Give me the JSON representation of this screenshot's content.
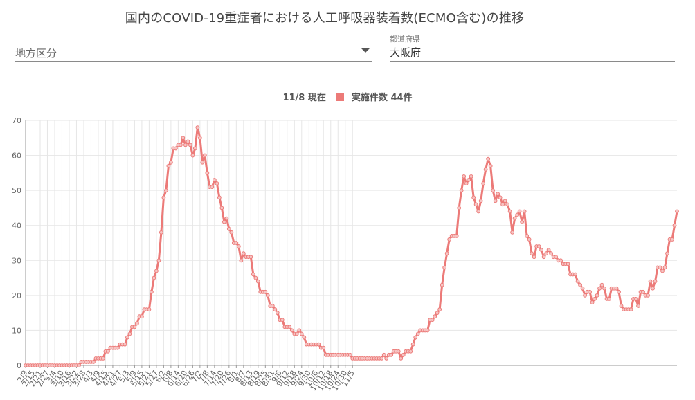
{
  "page": {
    "title": "国内のCOVID-19重症者における人工呼吸器装着数(ECMO含む)の推移"
  },
  "filters": {
    "region_placeholder": "地方区分",
    "prefecture_label": "都道府県",
    "prefecture_value": "大阪府"
  },
  "legend": {
    "date": "11/8 現在",
    "series_label": "実施件数 44件"
  },
  "colors": {
    "series": "#ec7a78",
    "grid": "#e6e6e6",
    "axis": "#666666"
  },
  "chart_data": {
    "type": "line",
    "x_start": "2/9",
    "x_interval_days": 2,
    "x_tick_labels": [
      "2/9",
      "2/15",
      "2/21",
      "2/27",
      "3/4",
      "3/10",
      "3/16",
      "3/22",
      "3/28",
      "4/3",
      "4/9",
      "4/15",
      "4/21",
      "4/27",
      "5/3",
      "5/9",
      "5/15",
      "5/21",
      "5/27",
      "6/2",
      "6/8",
      "6/14",
      "6/20",
      "6/26",
      "7/2",
      "7/8",
      "7/14",
      "7/20",
      "7/26",
      "8/1",
      "8/7",
      "8/13",
      "8/19",
      "8/25",
      "8/31",
      "9/6",
      "9/12",
      "9/18",
      "9/24",
      "9/30",
      "10/6",
      "10/12",
      "10/18",
      "10/24",
      "10/30",
      "11/5"
    ],
    "ylim": [
      0,
      70
    ],
    "y_ticks": [
      0,
      10,
      20,
      30,
      40,
      50,
      60,
      70
    ],
    "series": [
      {
        "name": "実施件数",
        "values": [
          0,
          0,
          0,
          0,
          0,
          0,
          0,
          0,
          0,
          0,
          0,
          0,
          0,
          0,
          0,
          0,
          0,
          0,
          0,
          0,
          0,
          0,
          0,
          1,
          1,
          1,
          1,
          1,
          1,
          2,
          2,
          2,
          2,
          4,
          4,
          5,
          5,
          5,
          5,
          6,
          6,
          6,
          8,
          9,
          11,
          11,
          12,
          14,
          14,
          16,
          16,
          16,
          21,
          25,
          27,
          30,
          38,
          48,
          50,
          57,
          58,
          62,
          62,
          63,
          63,
          65,
          63,
          64,
          63,
          60,
          62,
          68,
          65,
          58,
          60,
          55,
          51,
          51,
          53,
          52,
          48,
          45,
          41,
          42,
          39,
          38,
          35,
          35,
          34,
          30,
          32,
          31,
          31,
          31,
          26,
          25,
          24,
          21,
          21,
          21,
          20,
          17,
          17,
          16,
          15,
          13,
          13,
          11,
          11,
          11,
          10,
          9,
          9,
          10,
          9,
          8,
          6,
          6,
          6,
          6,
          6,
          6,
          5,
          5,
          3,
          3,
          3,
          3,
          3,
          3,
          3,
          3,
          3,
          3,
          3,
          2,
          2,
          2,
          2,
          2,
          2,
          2,
          2,
          2,
          2,
          2,
          2,
          2,
          3,
          2,
          3,
          3,
          4,
          4,
          4,
          2,
          3,
          4,
          4,
          4,
          6,
          8,
          9,
          10,
          10,
          10,
          10,
          13,
          13,
          14,
          15,
          16,
          23,
          28,
          32,
          36,
          37,
          37,
          37,
          45,
          50,
          54,
          52,
          53,
          54,
          48,
          46,
          44,
          47,
          52,
          56,
          59,
          57,
          50,
          47,
          49,
          48,
          46,
          47,
          46,
          44,
          38,
          42,
          43,
          44,
          41,
          44,
          37,
          36,
          32,
          31,
          34,
          34,
          33,
          31,
          32,
          33,
          32,
          31,
          31,
          30,
          30,
          29,
          29,
          29,
          26,
          26,
          26,
          24,
          23,
          22,
          20,
          21,
          21,
          18,
          19,
          20,
          22,
          23,
          22,
          19,
          19,
          22,
          22,
          22,
          21,
          17,
          16,
          16,
          16,
          16,
          19,
          19,
          17,
          21,
          21,
          20,
          20,
          24,
          22,
          24,
          28,
          28,
          27,
          28,
          32,
          36,
          36,
          40,
          44
        ]
      }
    ]
  }
}
